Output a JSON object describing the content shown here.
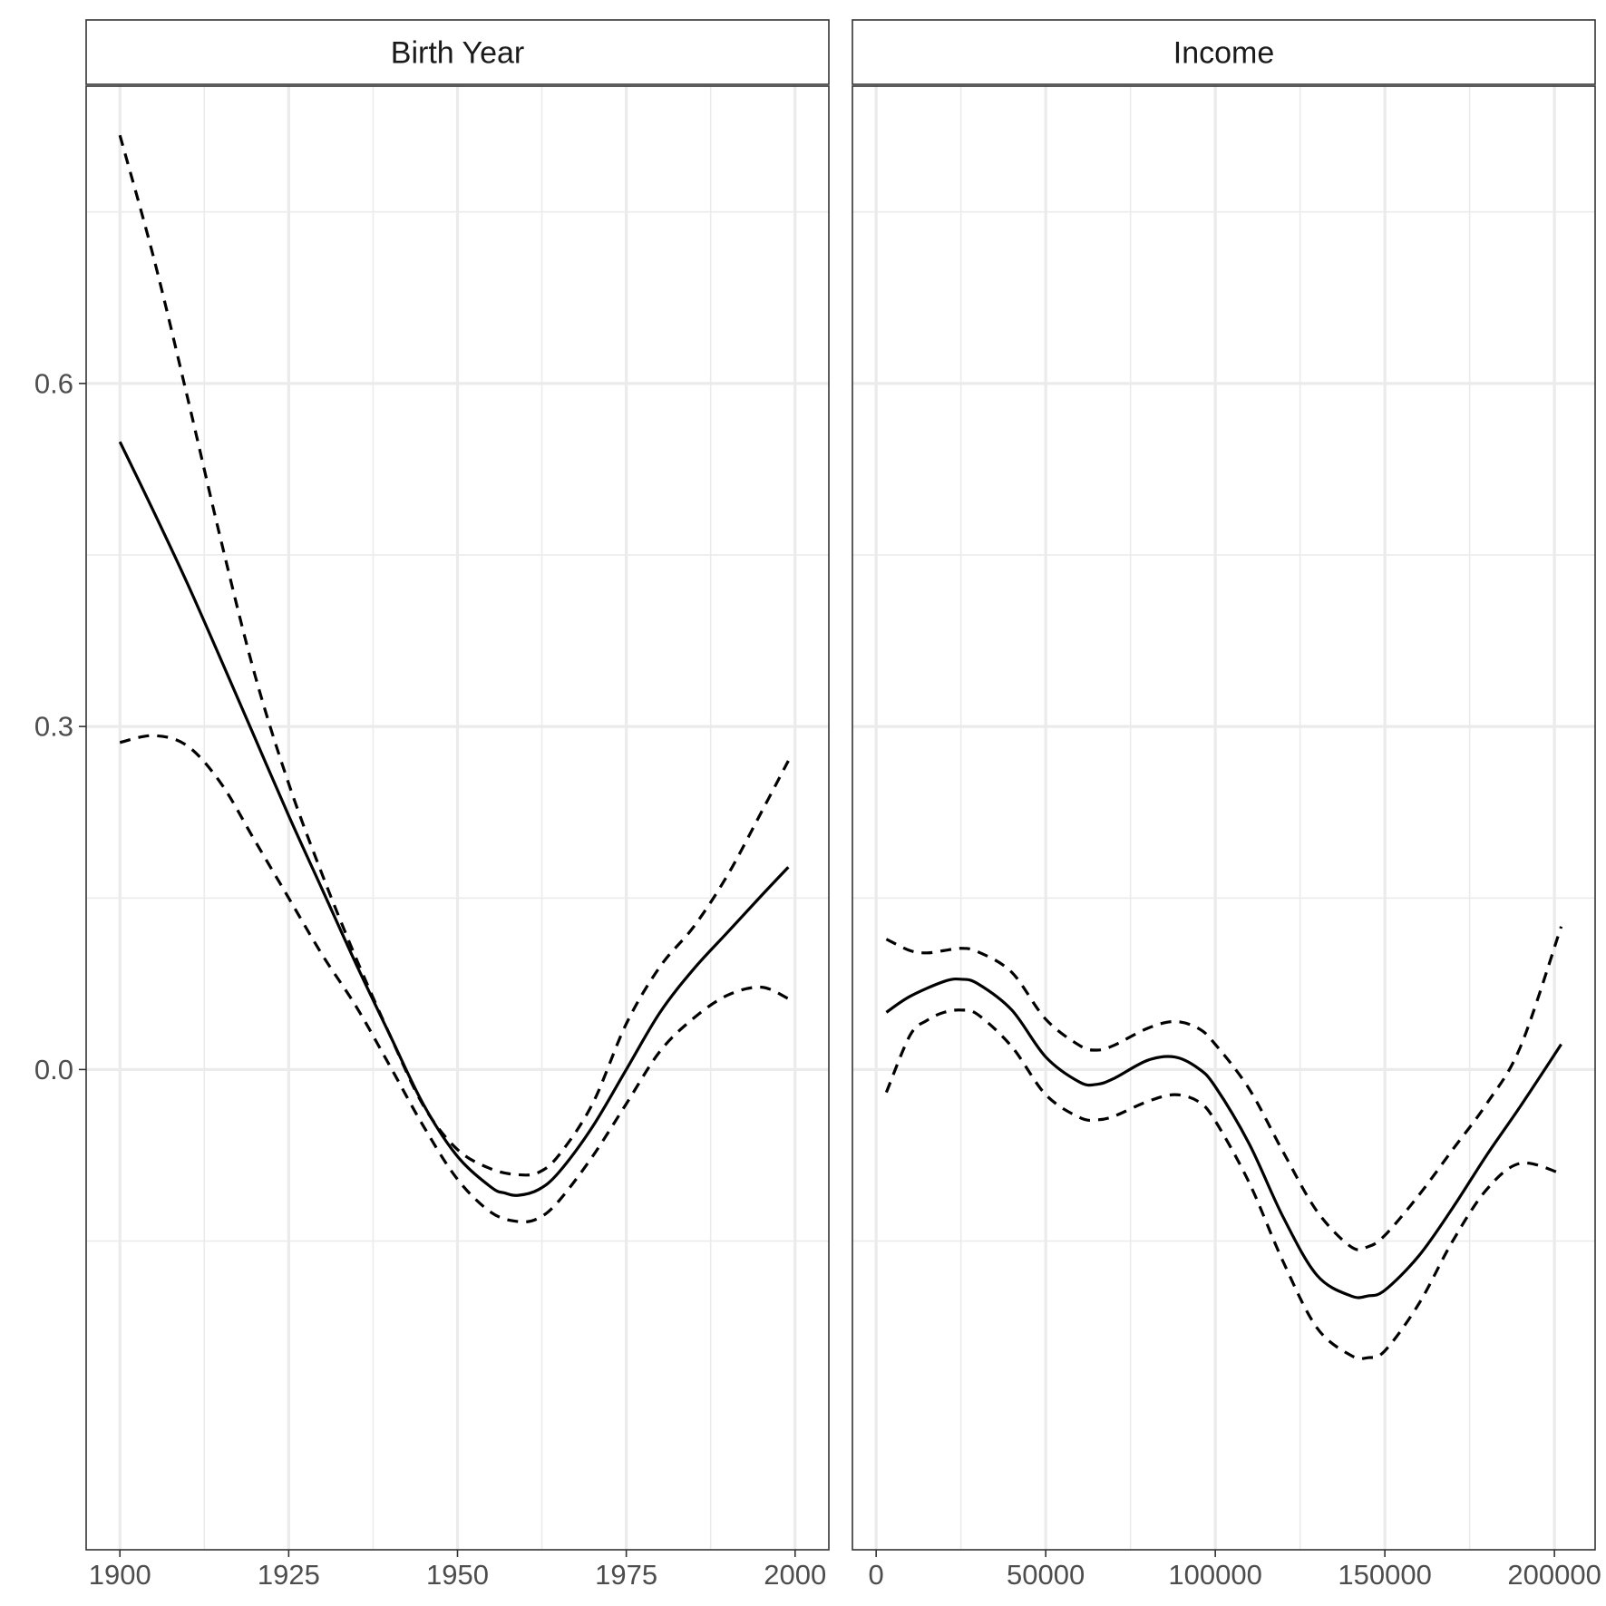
{
  "chart_data": {
    "type": "line",
    "y_axis": {
      "range": [
        -0.42,
        0.86
      ],
      "major_ticks": [
        0.0,
        0.3,
        0.6
      ],
      "tick_labels": [
        "0.0",
        "0.3",
        "0.6"
      ],
      "minor_ticks": [
        -0.15,
        0.15,
        0.45,
        0.75
      ]
    },
    "grid": true,
    "panels": [
      {
        "strip_label": "Birth Year",
        "x_axis": {
          "range": [
            1895,
            2005
          ],
          "major_ticks": [
            1900,
            1925,
            1950,
            1975,
            2000
          ],
          "tick_labels": [
            "1900",
            "1925",
            "1950",
            "1975",
            "2000"
          ],
          "minor_ticks": [
            1912.5,
            1937.5,
            1962.5,
            1987.5
          ]
        },
        "series": [
          {
            "role": "fit",
            "style": "solid",
            "x": [
              1900,
              1905,
              1910,
              1915,
              1920,
              1925,
              1930,
              1935,
              1940,
              1945,
              1950,
              1955,
              1957,
              1959,
              1962,
              1965,
              1970,
              1975,
              1980,
              1985,
              1990,
              1995,
              1999
            ],
            "y": [
              0.549,
              0.488,
              0.425,
              0.358,
              0.29,
              0.222,
              0.157,
              0.092,
              0.03,
              -0.031,
              -0.076,
              -0.103,
              -0.108,
              -0.11,
              -0.105,
              -0.09,
              -0.05,
              0.0,
              0.05,
              0.088,
              0.12,
              0.152,
              0.177
            ]
          },
          {
            "role": "upper",
            "style": "dashed",
            "x": [
              1900,
              1905,
              1910,
              1915,
              1920,
              1925,
              1930,
              1935,
              1940,
              1945,
              1950,
              1955,
              1959,
              1962,
              1965,
              1970,
              1975,
              1980,
              1985,
              1990,
              1995,
              1999
            ],
            "y": [
              0.817,
              0.71,
              0.588,
              0.462,
              0.345,
              0.25,
              0.17,
              0.097,
              0.03,
              -0.032,
              -0.07,
              -0.087,
              -0.092,
              -0.09,
              -0.075,
              -0.03,
              0.04,
              0.09,
              0.125,
              0.17,
              0.225,
              0.27
            ]
          },
          {
            "role": "lower",
            "style": "dashed",
            "x": [
              1900,
              1905,
              1910,
              1915,
              1920,
              1925,
              1930,
              1935,
              1940,
              1945,
              1950,
              1955,
              1959,
              1962,
              1965,
              1970,
              1975,
              1980,
              1985,
              1990,
              1995,
              1999
            ],
            "y": [
              0.286,
              0.292,
              0.283,
              0.25,
              0.2,
              0.15,
              0.1,
              0.055,
              0.003,
              -0.05,
              -0.096,
              -0.125,
              -0.133,
              -0.13,
              -0.115,
              -0.076,
              -0.03,
              0.016,
              0.045,
              0.065,
              0.072,
              0.062
            ]
          }
        ]
      },
      {
        "strip_label": "Income",
        "x_axis": {
          "range": [
            -7000,
            212000
          ],
          "major_ticks": [
            0,
            50000,
            100000,
            150000,
            200000
          ],
          "tick_labels": [
            "0",
            "50000",
            "100000",
            "150000",
            "200000"
          ],
          "minor_ticks": [
            25000,
            75000,
            125000,
            175000
          ]
        },
        "series": [
          {
            "role": "fit",
            "style": "solid",
            "x": [
              3000,
              10000,
              20000,
              25000,
              30000,
              40000,
              50000,
              60000,
              65000,
              70000,
              80000,
              88000,
              95000,
              100000,
              110000,
              120000,
              130000,
              140000,
              145000,
              150000,
              160000,
              170000,
              180000,
              190000,
              202000
            ],
            "y": [
              0.05,
              0.064,
              0.077,
              0.079,
              0.075,
              0.052,
              0.011,
              -0.011,
              -0.013,
              -0.008,
              0.008,
              0.011,
              0.001,
              -0.015,
              -0.065,
              -0.129,
              -0.18,
              -0.198,
              -0.198,
              -0.193,
              -0.163,
              -0.121,
              -0.075,
              -0.032,
              0.022
            ]
          },
          {
            "role": "upper",
            "style": "dashed",
            "x": [
              3000,
              10000,
              15000,
              20000,
              25000,
              30000,
              40000,
              50000,
              60000,
              65000,
              70000,
              80000,
              88000,
              95000,
              100000,
              110000,
              120000,
              130000,
              140000,
              145000,
              150000,
              160000,
              170000,
              180000,
              190000,
              202000
            ],
            "y": [
              0.114,
              0.104,
              0.102,
              0.104,
              0.106,
              0.103,
              0.085,
              0.044,
              0.021,
              0.017,
              0.021,
              0.036,
              0.042,
              0.036,
              0.022,
              -0.017,
              -0.072,
              -0.124,
              -0.155,
              -0.155,
              -0.145,
              -0.11,
              -0.07,
              -0.03,
              0.02,
              0.125
            ]
          },
          {
            "role": "lower",
            "style": "dashed",
            "x": [
              3000,
              10000,
              15000,
              20000,
              25000,
              30000,
              40000,
              50000,
              60000,
              65000,
              70000,
              80000,
              88000,
              95000,
              100000,
              110000,
              120000,
              130000,
              140000,
              145000,
              150000,
              160000,
              170000,
              180000,
              190000,
              202000
            ],
            "y": [
              -0.02,
              0.03,
              0.043,
              0.05,
              0.052,
              0.048,
              0.02,
              -0.022,
              -0.042,
              -0.044,
              -0.041,
              -0.028,
              -0.022,
              -0.028,
              -0.045,
              -0.099,
              -0.168,
              -0.226,
              -0.25,
              -0.252,
              -0.246,
              -0.205,
              -0.15,
              -0.105,
              -0.082,
              -0.091
            ]
          }
        ]
      }
    ]
  }
}
